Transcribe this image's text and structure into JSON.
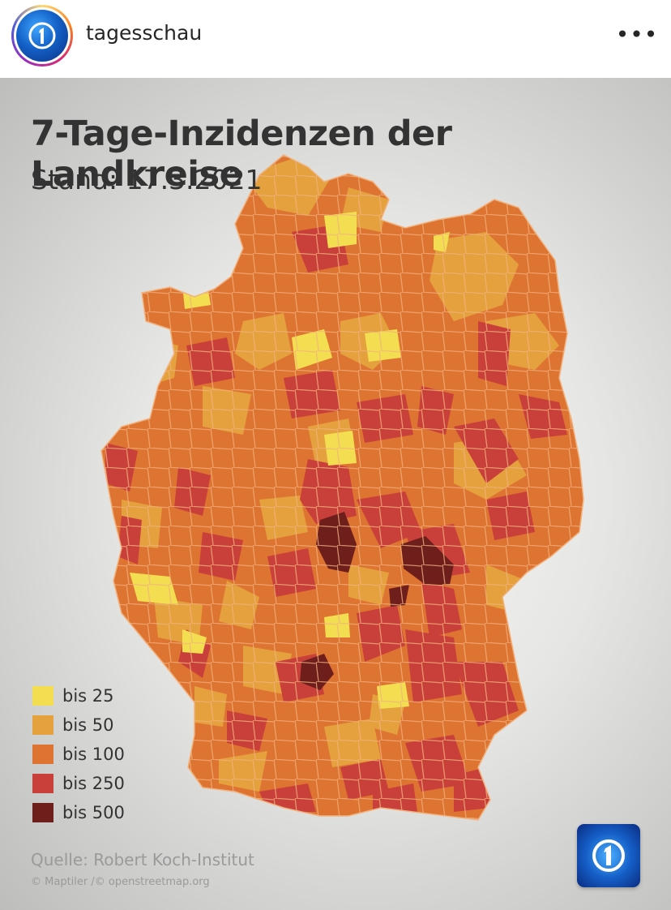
{
  "header": {
    "username": "tagesschau",
    "more_label": "•••",
    "avatar_icon": "tagesschau-logo-icon"
  },
  "graphic": {
    "title": "7-Tage-Inzidenzen der Landkreise",
    "subtitle": "Stand: 17.3.2021",
    "source": "Quelle: Robert Koch-Institut",
    "copyright": "© Maptiler /© openstreetmap.org",
    "logo_icon": "tagesschau-one-icon"
  },
  "legend": {
    "items": [
      {
        "label": "bis 25",
        "color": "#f2de50"
      },
      {
        "label": "bis 50",
        "color": "#e4a13e"
      },
      {
        "label": "bis 100",
        "color": "#de7431"
      },
      {
        "label": "bis 250",
        "color": "#c9403a"
      },
      {
        "label": "bis 500",
        "color": "#6e1f1c"
      }
    ]
  },
  "map_colors": {
    "base": "#de7431",
    "outline": "#f1b27e"
  }
}
